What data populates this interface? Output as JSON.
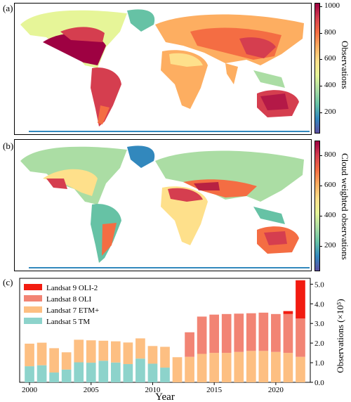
{
  "panels": {
    "a": {
      "label": "(a)",
      "colorbar_label": "Observations",
      "ticks": [
        "1000",
        "800",
        "600",
        "400",
        "200"
      ]
    },
    "b": {
      "label": "(b)",
      "colorbar_label": "Cloud weighted observations",
      "ticks": [
        "800",
        "600",
        "400",
        "200"
      ]
    },
    "c": {
      "label": "(c)"
    }
  },
  "colors": {
    "ls5": "#8dd3cb",
    "ls7": "#fdbf82",
    "ls8": "#f28474",
    "ls9": "#f21b10"
  },
  "chart_data": {
    "type": "bar",
    "stacked": true,
    "xlabel": "Year",
    "ylabel": "Observations (×10⁵)",
    "ylim": [
      0,
      5.3
    ],
    "yticks": [
      "0.0",
      "1.0",
      "2.0",
      "3.0",
      "4.0",
      "5.0"
    ],
    "xticks": [
      "2000",
      "2005",
      "2010",
      "2015",
      "2020"
    ],
    "legend_position": "top-left",
    "x": [
      2000,
      2001,
      2002,
      2003,
      2004,
      2005,
      2006,
      2007,
      2008,
      2009,
      2010,
      2011,
      2012,
      2013,
      2014,
      2015,
      2016,
      2017,
      2018,
      2019,
      2020,
      2021,
      2022
    ],
    "series": [
      {
        "name": "Landsat 5 TM",
        "values": [
          0.82,
          0.87,
          0.5,
          0.65,
          1.02,
          1.0,
          1.1,
          1.01,
          0.93,
          1.21,
          0.95,
          0.75,
          0,
          0,
          0,
          0,
          0,
          0,
          0,
          0,
          0,
          0,
          0
        ]
      },
      {
        "name": "Landsat 7 ETM+",
        "values": [
          1.15,
          1.15,
          1.24,
          0.88,
          1.15,
          1.14,
          1.02,
          1.08,
          1.1,
          1.03,
          0.9,
          1.06,
          1.28,
          1.3,
          1.45,
          1.5,
          1.5,
          1.55,
          1.6,
          1.6,
          1.55,
          1.5,
          1.3
        ]
      },
      {
        "name": "Landsat 8 OLI",
        "values": [
          0,
          0,
          0,
          0,
          0,
          0,
          0,
          0,
          0,
          0,
          0,
          0,
          0,
          1.25,
          1.9,
          1.95,
          1.98,
          1.95,
          1.92,
          1.95,
          1.93,
          1.98,
          1.95
        ]
      },
      {
        "name": "Landsat 9 OLI-2",
        "values": [
          0,
          0,
          0,
          0,
          0,
          0,
          0,
          0,
          0,
          0,
          0,
          0,
          0,
          0,
          0,
          0,
          0,
          0,
          0,
          0,
          0,
          0.15,
          1.95
        ]
      }
    ]
  }
}
